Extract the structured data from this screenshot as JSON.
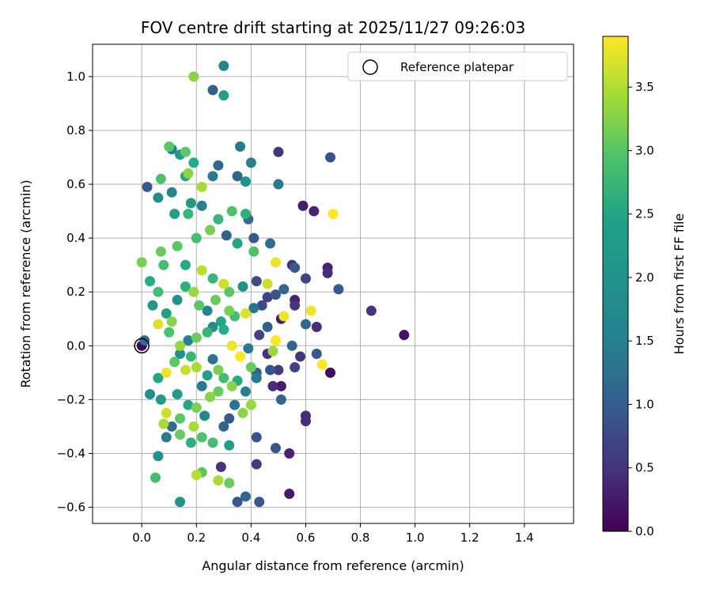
{
  "chart_data": {
    "type": "scatter",
    "title": "FOV centre drift starting at 2025/11/27 09:26:03",
    "xlabel": "Angular distance from reference (arcmin)",
    "ylabel": "Rotation from reference (arcmin)",
    "xlim": [
      -0.18,
      1.58
    ],
    "ylim": [
      -0.66,
      1.12
    ],
    "xticks": [
      0.0,
      0.2,
      0.4,
      0.6,
      0.8,
      1.0,
      1.2,
      1.4
    ],
    "xtick_labels": [
      "0.0",
      "0.2",
      "0.4",
      "0.6",
      "0.8",
      "1.0",
      "1.2",
      "1.4"
    ],
    "yticks": [
      -0.6,
      -0.4,
      -0.2,
      0.0,
      0.2,
      0.4,
      0.6,
      0.8,
      1.0
    ],
    "ytick_labels": [
      "−0.6",
      "−0.4",
      "−0.2",
      "0.0",
      "0.2",
      "0.4",
      "0.6",
      "0.8",
      "1.0"
    ],
    "grid": true,
    "legend": {
      "location": "top-right",
      "entries": [
        "Reference platepar"
      ]
    },
    "colorbar": {
      "label": "Hours from first FF file",
      "min": 0.0,
      "max": 3.9,
      "ticks": [
        0.0,
        0.5,
        1.0,
        1.5,
        2.0,
        2.5,
        3.0,
        3.5
      ],
      "tick_labels": [
        "0.0",
        "0.5",
        "1.0",
        "1.5",
        "2.0",
        "2.5",
        "3.0",
        "3.5"
      ],
      "colormap": "viridis"
    },
    "reference": {
      "name": "Reference platepar",
      "x": 0.0,
      "y": 0.0
    },
    "points": [
      [
        0.0,
        0.0,
        0.05
      ],
      [
        0.01,
        0.02,
        1.4
      ],
      [
        0.02,
        0.59,
        1.1
      ],
      [
        0.06,
        0.55,
        1.9
      ],
      [
        0.07,
        0.62,
        2.8
      ],
      [
        0.1,
        0.74,
        2.9
      ],
      [
        0.11,
        0.73,
        1.7
      ],
      [
        0.14,
        0.71,
        2.1
      ],
      [
        0.17,
        0.64,
        3.2
      ],
      [
        0.16,
        0.63,
        2.3
      ],
      [
        0.19,
        0.68,
        2.4
      ],
      [
        0.16,
        0.72,
        2.9
      ],
      [
        0.19,
        1.0,
        3.2
      ],
      [
        0.26,
        0.95,
        1.2
      ],
      [
        0.3,
        1.04,
        1.8
      ],
      [
        0.3,
        0.93,
        2.2
      ],
      [
        0.28,
        0.67,
        1.3
      ],
      [
        0.26,
        0.63,
        1.6
      ],
      [
        0.22,
        0.59,
        3.4
      ],
      [
        0.36,
        0.74,
        1.6
      ],
      [
        0.4,
        0.68,
        1.7
      ],
      [
        0.35,
        0.63,
        1.3
      ],
      [
        0.38,
        0.61,
        2.0
      ],
      [
        0.5,
        0.72,
        0.6
      ],
      [
        0.5,
        0.6,
        1.6
      ],
      [
        0.69,
        0.7,
        1.0
      ],
      [
        0.59,
        0.52,
        0.3
      ],
      [
        0.63,
        0.5,
        0.4
      ],
      [
        0.7,
        0.49,
        3.9
      ],
      [
        0.11,
        0.57,
        1.8
      ],
      [
        0.18,
        0.53,
        2.1
      ],
      [
        0.22,
        0.52,
        1.7
      ],
      [
        0.17,
        0.49,
        2.6
      ],
      [
        0.12,
        0.49,
        2.2
      ],
      [
        0.2,
        0.4,
        2.7
      ],
      [
        0.28,
        0.47,
        2.6
      ],
      [
        0.33,
        0.5,
        2.8
      ],
      [
        0.38,
        0.49,
        2.5
      ],
      [
        0.39,
        0.47,
        1.4
      ],
      [
        0.25,
        0.43,
        3.1
      ],
      [
        0.31,
        0.41,
        1.2
      ],
      [
        0.35,
        0.38,
        2.3
      ],
      [
        0.41,
        0.4,
        1.1
      ],
      [
        0.47,
        0.38,
        1.4
      ],
      [
        0.41,
        0.35,
        2.8
      ],
      [
        0.07,
        0.35,
        3.0
      ],
      [
        0.0,
        0.31,
        3.1
      ],
      [
        0.08,
        0.3,
        2.7
      ],
      [
        0.13,
        0.37,
        2.9
      ],
      [
        0.16,
        0.3,
        2.4
      ],
      [
        0.22,
        0.28,
        3.5
      ],
      [
        0.26,
        0.25,
        2.6
      ],
      [
        0.3,
        0.23,
        3.6
      ],
      [
        0.32,
        0.2,
        2.9
      ],
      [
        0.37,
        0.22,
        2.0
      ],
      [
        0.42,
        0.24,
        0.9
      ],
      [
        0.46,
        0.23,
        3.6
      ],
      [
        0.49,
        0.31,
        3.8
      ],
      [
        0.55,
        0.3,
        0.6
      ],
      [
        0.56,
        0.29,
        1.1
      ],
      [
        0.6,
        0.25,
        0.8
      ],
      [
        0.68,
        0.27,
        0.5
      ],
      [
        0.68,
        0.29,
        0.4
      ],
      [
        0.72,
        0.21,
        1.1
      ],
      [
        0.84,
        0.13,
        0.6
      ],
      [
        0.96,
        0.04,
        0.2
      ],
      [
        0.62,
        0.13,
        3.8
      ],
      [
        0.56,
        0.17,
        0.4
      ],
      [
        0.56,
        0.15,
        0.6
      ],
      [
        0.52,
        0.21,
        1.3
      ],
      [
        0.49,
        0.19,
        1.0
      ],
      [
        0.46,
        0.18,
        0.8
      ],
      [
        0.44,
        0.15,
        0.9
      ],
      [
        0.41,
        0.14,
        1.5
      ],
      [
        0.38,
        0.12,
        3.7
      ],
      [
        0.34,
        0.11,
        2.7
      ],
      [
        0.32,
        0.13,
        3.1
      ],
      [
        0.29,
        0.09,
        2.3
      ],
      [
        0.26,
        0.07,
        1.9
      ],
      [
        0.24,
        0.05,
        2.6
      ],
      [
        0.2,
        0.03,
        3.0
      ],
      [
        0.17,
        0.02,
        1.7
      ],
      [
        0.14,
        0.0,
        3.3
      ],
      [
        0.1,
        0.05,
        2.8
      ],
      [
        0.06,
        0.08,
        3.7
      ],
      [
        0.04,
        0.15,
        2.1
      ],
      [
        0.03,
        0.24,
        2.4
      ],
      [
        0.06,
        0.2,
        2.7
      ],
      [
        0.09,
        0.12,
        2.2
      ],
      [
        0.11,
        0.09,
        3.2
      ],
      [
        0.13,
        0.17,
        2.0
      ],
      [
        0.16,
        0.22,
        2.5
      ],
      [
        0.19,
        0.2,
        3.3
      ],
      [
        0.21,
        0.15,
        2.9
      ],
      [
        0.24,
        0.13,
        1.8
      ],
      [
        0.27,
        0.17,
        3.0
      ],
      [
        0.3,
        0.06,
        2.4
      ],
      [
        0.33,
        0.0,
        3.8
      ],
      [
        0.36,
        -0.04,
        3.9
      ],
      [
        0.39,
        -0.01,
        1.6
      ],
      [
        0.43,
        0.04,
        0.8
      ],
      [
        0.46,
        0.07,
        1.2
      ],
      [
        0.48,
        -0.02,
        3.3
      ],
      [
        0.49,
        0.02,
        3.9
      ],
      [
        0.51,
        0.1,
        0.3
      ],
      [
        0.52,
        0.11,
        3.8
      ],
      [
        0.55,
        0.0,
        1.3
      ],
      [
        0.58,
        -0.04,
        0.6
      ],
      [
        0.6,
        0.08,
        1.3
      ],
      [
        0.64,
        0.07,
        0.5
      ],
      [
        0.64,
        -0.03,
        1.1
      ],
      [
        0.66,
        -0.07,
        3.9
      ],
      [
        0.69,
        -0.1,
        0.1
      ],
      [
        0.56,
        -0.08,
        0.8
      ],
      [
        0.5,
        -0.09,
        0.7
      ],
      [
        0.47,
        -0.09,
        1.0
      ],
      [
        0.46,
        -0.03,
        0.6
      ],
      [
        0.42,
        -0.1,
        1.2
      ],
      [
        0.42,
        -0.12,
        1.6
      ],
      [
        0.4,
        -0.08,
        3.0
      ],
      [
        0.38,
        -0.17,
        1.7
      ],
      [
        0.35,
        -0.13,
        2.4
      ],
      [
        0.33,
        -0.15,
        3.2
      ],
      [
        0.3,
        -0.12,
        2.7
      ],
      [
        0.28,
        -0.09,
        3.1
      ],
      [
        0.26,
        -0.05,
        1.5
      ],
      [
        0.24,
        -0.11,
        2.2
      ],
      [
        0.22,
        -0.15,
        1.6
      ],
      [
        0.2,
        -0.08,
        3.4
      ],
      [
        0.18,
        -0.04,
        2.6
      ],
      [
        0.16,
        -0.09,
        3.6
      ],
      [
        0.14,
        -0.03,
        2.0
      ],
      [
        0.12,
        -0.06,
        2.9
      ],
      [
        0.09,
        -0.1,
        3.8
      ],
      [
        0.06,
        -0.12,
        2.3
      ],
      [
        0.03,
        -0.18,
        1.9
      ],
      [
        0.07,
        -0.2,
        2.1
      ],
      [
        0.09,
        -0.25,
        3.6
      ],
      [
        0.08,
        -0.29,
        3.4
      ],
      [
        0.09,
        -0.34,
        1.6
      ],
      [
        0.14,
        -0.33,
        3.0
      ],
      [
        0.18,
        -0.36,
        2.5
      ],
      [
        0.19,
        -0.3,
        3.4
      ],
      [
        0.22,
        -0.34,
        2.8
      ],
      [
        0.26,
        -0.36,
        2.7
      ],
      [
        0.3,
        -0.3,
        1.3
      ],
      [
        0.32,
        -0.37,
        2.2
      ],
      [
        0.29,
        -0.45,
        0.6
      ],
      [
        0.22,
        -0.47,
        2.9
      ],
      [
        0.2,
        -0.48,
        3.5
      ],
      [
        0.05,
        -0.49,
        2.7
      ],
      [
        0.06,
        -0.41,
        2.0
      ],
      [
        0.14,
        -0.58,
        2.0
      ],
      [
        0.28,
        -0.5,
        3.4
      ],
      [
        0.32,
        -0.51,
        3.0
      ],
      [
        0.35,
        -0.58,
        1.1
      ],
      [
        0.38,
        -0.56,
        1.3
      ],
      [
        0.43,
        -0.58,
        1.1
      ],
      [
        0.42,
        -0.44,
        0.7
      ],
      [
        0.42,
        -0.34,
        1.0
      ],
      [
        0.49,
        -0.38,
        1.0
      ],
      [
        0.54,
        -0.4,
        0.4
      ],
      [
        0.54,
        -0.55,
        0.3
      ],
      [
        0.6,
        -0.26,
        0.5
      ],
      [
        0.6,
        -0.28,
        0.5
      ],
      [
        0.51,
        -0.2,
        1.3
      ],
      [
        0.48,
        -0.15,
        0.5
      ],
      [
        0.51,
        -0.15,
        0.3
      ],
      [
        0.4,
        -0.22,
        3.3
      ],
      [
        0.37,
        -0.25,
        3.2
      ],
      [
        0.34,
        -0.22,
        1.5
      ],
      [
        0.32,
        -0.27,
        1.1
      ],
      [
        0.28,
        -0.17,
        3.0
      ],
      [
        0.25,
        -0.19,
        3.2
      ],
      [
        0.23,
        -0.26,
        1.8
      ],
      [
        0.2,
        -0.23,
        3.1
      ],
      [
        0.17,
        -0.22,
        2.3
      ],
      [
        0.14,
        -0.27,
        2.9
      ],
      [
        0.11,
        -0.3,
        1.4
      ],
      [
        0.13,
        -0.18,
        2.1
      ]
    ]
  }
}
